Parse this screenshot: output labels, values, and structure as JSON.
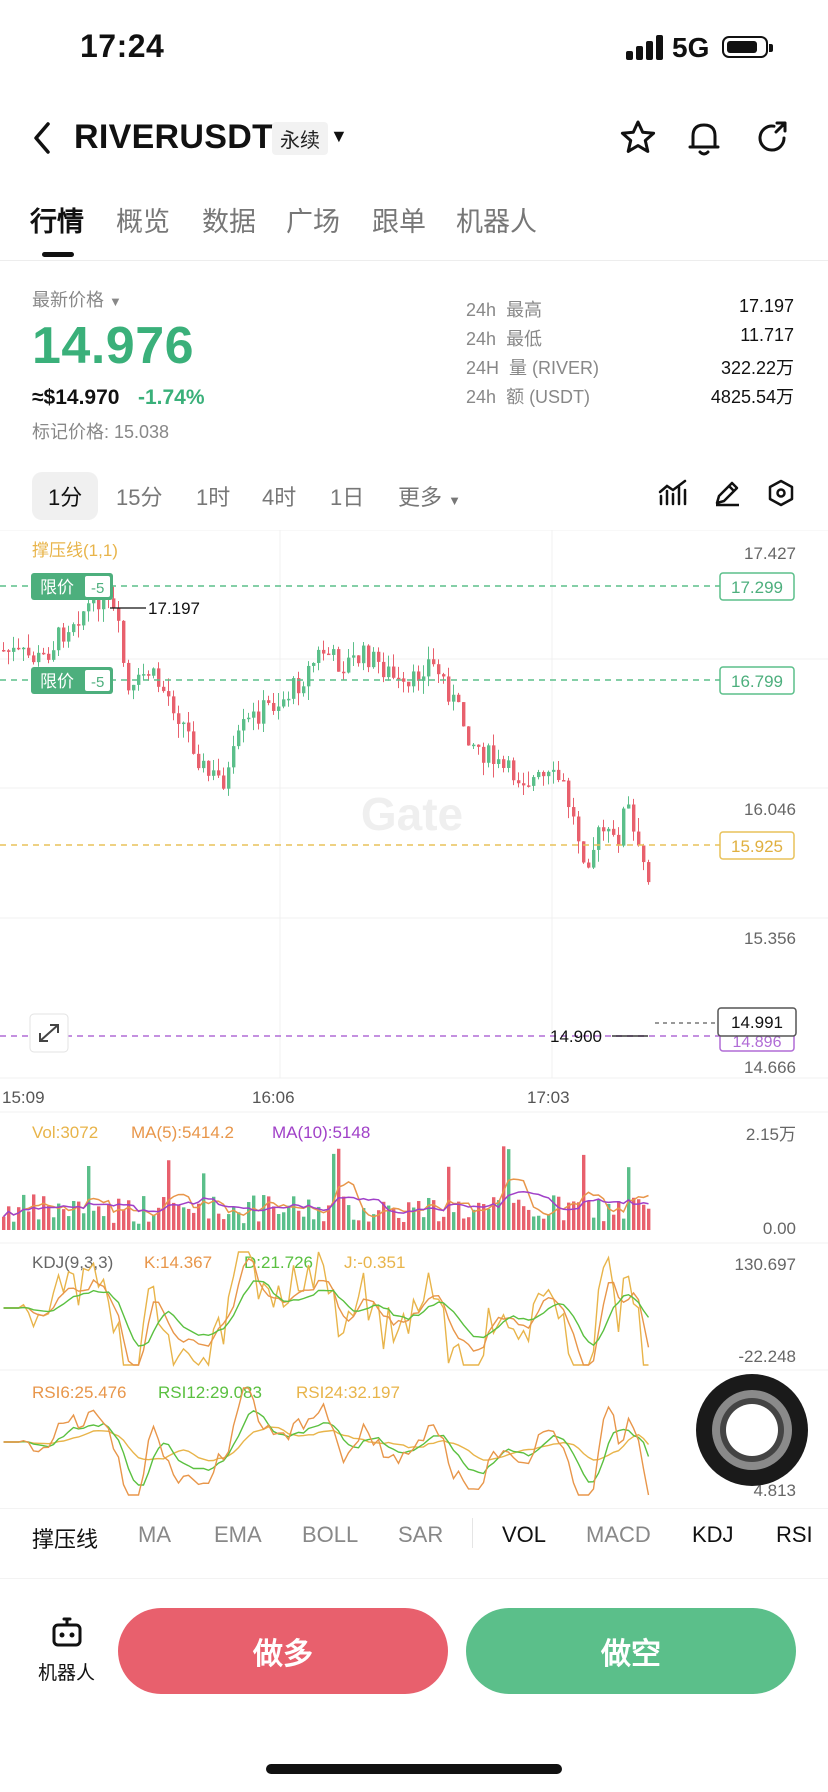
{
  "status": {
    "time": "17:24",
    "network": "5G"
  },
  "header": {
    "pair": "RIVERUSDT",
    "badge": "永续"
  },
  "tabs": [
    "行情",
    "概览",
    "数据",
    "广场",
    "跟单",
    "机器人"
  ],
  "price_panel": {
    "latest_label": "最新价格",
    "price": "14.976",
    "usd": "≈$14.970",
    "change": "-1.74%",
    "mark": "标记价格: 15.038",
    "stats": [
      {
        "k1": "24h",
        "k2": "最高",
        "v": "17.197"
      },
      {
        "k1": "24h",
        "k2": "最低",
        "v": "11.717"
      },
      {
        "k1": "24H",
        "k2": "量 (RIVER)",
        "v": "322.22万"
      },
      {
        "k1": "24h",
        "k2": "额 (USDT)",
        "v": "4825.54万"
      }
    ]
  },
  "intervals": [
    "1分",
    "15分",
    "1时",
    "4时",
    "1日",
    "更多"
  ],
  "chart": {
    "indicator_label": "撑压线(1,1)",
    "y_ticks": [
      "17.427",
      "16.046",
      "15.356",
      "14.666"
    ],
    "order_label": "限价",
    "order_qty": "-5",
    "lines": [
      {
        "price": "17.299",
        "color": "#5bbf8a"
      },
      {
        "price": "16.799",
        "color": "#5bbf8a"
      },
      {
        "price": "15.925",
        "color": "#e8c25a"
      },
      {
        "price": "14.896",
        "color": "#b06bd6"
      }
    ],
    "last_price": "14.991",
    "high_label": "17.197",
    "low_label": "14.900",
    "watermark": "Gate",
    "x_ticks": [
      "15:09",
      "16:06",
      "17:03"
    ],
    "vol": {
      "vol": "Vol:3072",
      "ma5": "MA(5):5414.2",
      "ma10": "MA(10):5148",
      "max": "2.15万",
      "min": "0.00"
    },
    "kdj": {
      "name": "KDJ(9,3,3)",
      "k": "K:14.367",
      "d": "D:21.726",
      "j": "J:-0.351",
      "max": "130.697",
      "min": "-22.248"
    },
    "rsi": {
      "r6": "RSI6:25.476",
      "r12": "RSI12:29.083",
      "r24": "RSI24:32.197",
      "min": "4.813"
    }
  },
  "indicators": [
    "撑压线",
    "MA",
    "EMA",
    "BOLL",
    "SAR",
    "VOL",
    "MACD",
    "KDJ",
    "RSI"
  ],
  "colors": {
    "up": "#5bbf8a",
    "down": "#e8606d",
    "accent": "#3ab07a"
  },
  "bottom": {
    "robot": "机器人",
    "long": "做多",
    "short": "做空"
  }
}
